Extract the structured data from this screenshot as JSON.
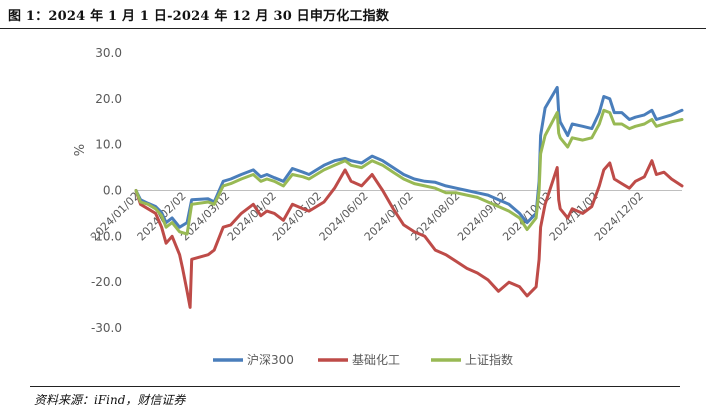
{
  "figure": {
    "title": "图 1：2024 年 1 月 1 日-2024 年 12 月 30 日申万化工指数",
    "source": "资料来源：iFind，财信证券"
  },
  "colors": {
    "hs300": "#4a7ebb",
    "chem": "#be4b48",
    "sh": "#98b954",
    "axis": "#bfbfbf",
    "text": "#595959"
  },
  "chart_data": {
    "type": "line",
    "title": "",
    "xlabel": "",
    "ylabel": "%",
    "ylim": [
      -30,
      30
    ],
    "yticks": [
      "30.0",
      "20.0",
      "10.0",
      "0.0",
      "-10.0",
      "-20.0",
      "-30.0"
    ],
    "xlim": [
      "2024-01-02",
      "2024-12-30"
    ],
    "xtick_labels": [
      "2024/01/02",
      "2024/02/02",
      "2024/03/02",
      "2024/04/02",
      "2024/05/02",
      "2024/06/02",
      "2024/07/02",
      "2024/08/02",
      "2024/09/02",
      "2024/10/02",
      "2024/11/02",
      "2024/12/02"
    ],
    "grid": false,
    "legend_position": "bottom",
    "series": [
      {
        "name": "沪深300",
        "color_key": "hs300",
        "points": [
          [
            "2024-01-02",
            0.0
          ],
          [
            "2024-01-05",
            -2.0
          ],
          [
            "2024-01-10",
            -2.8
          ],
          [
            "2024-01-15",
            -3.5
          ],
          [
            "2024-01-19",
            -4.8
          ],
          [
            "2024-01-22",
            -7.0
          ],
          [
            "2024-01-26",
            -6.0
          ],
          [
            "2024-01-31",
            -8.0
          ],
          [
            "2024-02-05",
            -7.0
          ],
          [
            "2024-02-08",
            -2.0
          ],
          [
            "2024-02-19",
            -1.8
          ],
          [
            "2024-02-23",
            -2.5
          ],
          [
            "2024-02-29",
            2.0
          ],
          [
            "2024-03-05",
            2.5
          ],
          [
            "2024-03-12",
            3.5
          ],
          [
            "2024-03-20",
            4.5
          ],
          [
            "2024-03-25",
            3.0
          ],
          [
            "2024-03-29",
            3.5
          ],
          [
            "2024-04-03",
            2.8
          ],
          [
            "2024-04-09",
            2.0
          ],
          [
            "2024-04-15",
            4.8
          ],
          [
            "2024-04-22",
            4.0
          ],
          [
            "2024-04-26",
            3.5
          ],
          [
            "2024-05-06",
            5.5
          ],
          [
            "2024-05-13",
            6.5
          ],
          [
            "2024-05-20",
            7.0
          ],
          [
            "2024-05-24",
            6.5
          ],
          [
            "2024-05-31",
            6.0
          ],
          [
            "2024-06-07",
            7.5
          ],
          [
            "2024-06-14",
            6.5
          ],
          [
            "2024-06-21",
            5.0
          ],
          [
            "2024-06-28",
            3.5
          ],
          [
            "2024-07-05",
            2.5
          ],
          [
            "2024-07-12",
            2.0
          ],
          [
            "2024-07-19",
            1.8
          ],
          [
            "2024-07-26",
            1.0
          ],
          [
            "2024-08-02",
            0.5
          ],
          [
            "2024-08-09",
            0.0
          ],
          [
            "2024-08-16",
            -0.5
          ],
          [
            "2024-08-23",
            -1.0
          ],
          [
            "2024-08-30",
            -2.0
          ],
          [
            "2024-09-06",
            -3.0
          ],
          [
            "2024-09-13",
            -5.0
          ],
          [
            "2024-09-18",
            -7.0
          ],
          [
            "2024-09-24",
            -5.0
          ],
          [
            "2024-09-26",
            2.0
          ],
          [
            "2024-09-27",
            12.0
          ],
          [
            "2024-09-30",
            18.0
          ],
          [
            "2024-10-08",
            22.5
          ],
          [
            "2024-10-09",
            17.0
          ],
          [
            "2024-10-10",
            15.0
          ],
          [
            "2024-10-15",
            12.0
          ],
          [
            "2024-10-18",
            14.5
          ],
          [
            "2024-10-25",
            14.0
          ],
          [
            "2024-10-31",
            13.5
          ],
          [
            "2024-11-05",
            17.0
          ],
          [
            "2024-11-08",
            20.5
          ],
          [
            "2024-11-12",
            20.0
          ],
          [
            "2024-11-15",
            17.0
          ],
          [
            "2024-11-20",
            17.0
          ],
          [
            "2024-11-25",
            15.5
          ],
          [
            "2024-11-29",
            16.0
          ],
          [
            "2024-12-05",
            16.5
          ],
          [
            "2024-12-10",
            17.5
          ],
          [
            "2024-12-13",
            15.5
          ],
          [
            "2024-12-18",
            16.0
          ],
          [
            "2024-12-23",
            16.5
          ],
          [
            "2024-12-30",
            17.5
          ]
        ]
      },
      {
        "name": "基础化工",
        "color_key": "chem",
        "points": [
          [
            "2024-01-02",
            0.0
          ],
          [
            "2024-01-05",
            -3.0
          ],
          [
            "2024-01-10",
            -4.0
          ],
          [
            "2024-01-15",
            -5.0
          ],
          [
            "2024-01-19",
            -8.0
          ],
          [
            "2024-01-22",
            -11.5
          ],
          [
            "2024-01-26",
            -10.0
          ],
          [
            "2024-01-31",
            -14.0
          ],
          [
            "2024-02-02",
            -17.0
          ],
          [
            "2024-02-05",
            -22.0
          ],
          [
            "2024-02-07",
            -25.5
          ],
          [
            "2024-02-08",
            -15.0
          ],
          [
            "2024-02-19",
            -14.0
          ],
          [
            "2024-02-23",
            -13.0
          ],
          [
            "2024-02-29",
            -8.0
          ],
          [
            "2024-03-05",
            -7.5
          ],
          [
            "2024-03-12",
            -5.0
          ],
          [
            "2024-03-20",
            -3.0
          ],
          [
            "2024-03-25",
            -5.5
          ],
          [
            "2024-03-29",
            -4.5
          ],
          [
            "2024-04-03",
            -5.0
          ],
          [
            "2024-04-09",
            -6.5
          ],
          [
            "2024-04-15",
            -3.0
          ],
          [
            "2024-04-22",
            -4.0
          ],
          [
            "2024-04-26",
            -4.5
          ],
          [
            "2024-05-06",
            -2.5
          ],
          [
            "2024-05-13",
            0.5
          ],
          [
            "2024-05-20",
            4.5
          ],
          [
            "2024-05-24",
            2.0
          ],
          [
            "2024-05-31",
            1.0
          ],
          [
            "2024-06-07",
            3.5
          ],
          [
            "2024-06-14",
            0.0
          ],
          [
            "2024-06-21",
            -4.0
          ],
          [
            "2024-06-28",
            -7.5
          ],
          [
            "2024-07-05",
            -9.0
          ],
          [
            "2024-07-12",
            -10.0
          ],
          [
            "2024-07-19",
            -13.0
          ],
          [
            "2024-07-26",
            -14.0
          ],
          [
            "2024-08-02",
            -15.5
          ],
          [
            "2024-08-09",
            -17.0
          ],
          [
            "2024-08-16",
            -18.0
          ],
          [
            "2024-08-23",
            -19.5
          ],
          [
            "2024-08-30",
            -22.0
          ],
          [
            "2024-09-06",
            -20.0
          ],
          [
            "2024-09-13",
            -21.0
          ],
          [
            "2024-09-18",
            -23.0
          ],
          [
            "2024-09-24",
            -21.0
          ],
          [
            "2024-09-26",
            -15.0
          ],
          [
            "2024-09-27",
            -8.0
          ],
          [
            "2024-09-30",
            -3.0
          ],
          [
            "2024-10-08",
            5.0
          ],
          [
            "2024-10-09",
            -2.0
          ],
          [
            "2024-10-10",
            -4.0
          ],
          [
            "2024-10-15",
            -6.0
          ],
          [
            "2024-10-18",
            -4.0
          ],
          [
            "2024-10-25",
            -5.0
          ],
          [
            "2024-10-31",
            -3.5
          ],
          [
            "2024-11-05",
            1.0
          ],
          [
            "2024-11-08",
            4.5
          ],
          [
            "2024-11-12",
            6.0
          ],
          [
            "2024-11-15",
            2.5
          ],
          [
            "2024-11-20",
            1.5
          ],
          [
            "2024-11-25",
            0.5
          ],
          [
            "2024-11-29",
            2.0
          ],
          [
            "2024-12-05",
            3.0
          ],
          [
            "2024-12-10",
            6.5
          ],
          [
            "2024-12-13",
            3.5
          ],
          [
            "2024-12-18",
            4.0
          ],
          [
            "2024-12-23",
            2.5
          ],
          [
            "2024-12-30",
            1.0
          ]
        ]
      },
      {
        "name": "上证指数",
        "color_key": "sh",
        "points": [
          [
            "2024-01-02",
            0.0
          ],
          [
            "2024-01-05",
            -2.5
          ],
          [
            "2024-01-10",
            -3.0
          ],
          [
            "2024-01-15",
            -4.0
          ],
          [
            "2024-01-19",
            -5.5
          ],
          [
            "2024-01-22",
            -8.0
          ],
          [
            "2024-01-26",
            -7.0
          ],
          [
            "2024-01-31",
            -9.0
          ],
          [
            "2024-02-05",
            -9.5
          ],
          [
            "2024-02-08",
            -3.0
          ],
          [
            "2024-02-19",
            -2.5
          ],
          [
            "2024-02-23",
            -3.0
          ],
          [
            "2024-02-29",
            1.0
          ],
          [
            "2024-03-05",
            1.5
          ],
          [
            "2024-03-12",
            2.5
          ],
          [
            "2024-03-20",
            3.5
          ],
          [
            "2024-03-25",
            2.0
          ],
          [
            "2024-03-29",
            2.5
          ],
          [
            "2024-04-03",
            2.0
          ],
          [
            "2024-04-09",
            1.0
          ],
          [
            "2024-04-15",
            3.5
          ],
          [
            "2024-04-22",
            3.0
          ],
          [
            "2024-04-26",
            2.5
          ],
          [
            "2024-05-06",
            4.5
          ],
          [
            "2024-05-13",
            5.5
          ],
          [
            "2024-05-20",
            6.5
          ],
          [
            "2024-05-24",
            5.5
          ],
          [
            "2024-05-31",
            5.0
          ],
          [
            "2024-06-07",
            6.5
          ],
          [
            "2024-06-14",
            5.5
          ],
          [
            "2024-06-21",
            4.0
          ],
          [
            "2024-06-28",
            2.5
          ],
          [
            "2024-07-05",
            1.5
          ],
          [
            "2024-07-12",
            1.0
          ],
          [
            "2024-07-19",
            0.5
          ],
          [
            "2024-07-26",
            -0.5
          ],
          [
            "2024-08-02",
            -0.5
          ],
          [
            "2024-08-09",
            -1.0
          ],
          [
            "2024-08-16",
            -1.5
          ],
          [
            "2024-08-23",
            -2.5
          ],
          [
            "2024-08-30",
            -3.5
          ],
          [
            "2024-09-06",
            -4.5
          ],
          [
            "2024-09-13",
            -6.0
          ],
          [
            "2024-09-18",
            -8.5
          ],
          [
            "2024-09-24",
            -6.0
          ],
          [
            "2024-09-26",
            0.0
          ],
          [
            "2024-09-27",
            8.0
          ],
          [
            "2024-09-30",
            12.0
          ],
          [
            "2024-10-08",
            17.0
          ],
          [
            "2024-10-09",
            12.5
          ],
          [
            "2024-10-10",
            11.5
          ],
          [
            "2024-10-15",
            9.5
          ],
          [
            "2024-10-18",
            11.5
          ],
          [
            "2024-10-25",
            11.0
          ],
          [
            "2024-10-31",
            11.5
          ],
          [
            "2024-11-05",
            14.5
          ],
          [
            "2024-11-08",
            17.5
          ],
          [
            "2024-11-12",
            17.0
          ],
          [
            "2024-11-15",
            14.5
          ],
          [
            "2024-11-20",
            14.5
          ],
          [
            "2024-11-25",
            13.5
          ],
          [
            "2024-11-29",
            14.0
          ],
          [
            "2024-12-05",
            14.5
          ],
          [
            "2024-12-10",
            15.5
          ],
          [
            "2024-12-13",
            14.0
          ],
          [
            "2024-12-18",
            14.5
          ],
          [
            "2024-12-23",
            15.0
          ],
          [
            "2024-12-30",
            15.5
          ]
        ]
      }
    ]
  }
}
